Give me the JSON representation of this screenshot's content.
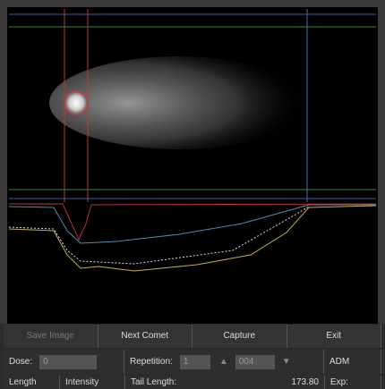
{
  "toolbar": {
    "buttons": [
      "Save Image",
      "Next Comet",
      "Capture",
      "Exit"
    ]
  },
  "params": {
    "dose_label": "Dose:",
    "dose_value": "0",
    "repetition_label": "Repetition:",
    "repetition_value": "1",
    "counter_value": "004",
    "mode": "ADM"
  },
  "results": {
    "length_label": "Length",
    "intensity_label": "Intensity",
    "tail_length_label": "Tail Length:",
    "tail_length_value": "173.80",
    "exp_label": "Exp:"
  }
}
